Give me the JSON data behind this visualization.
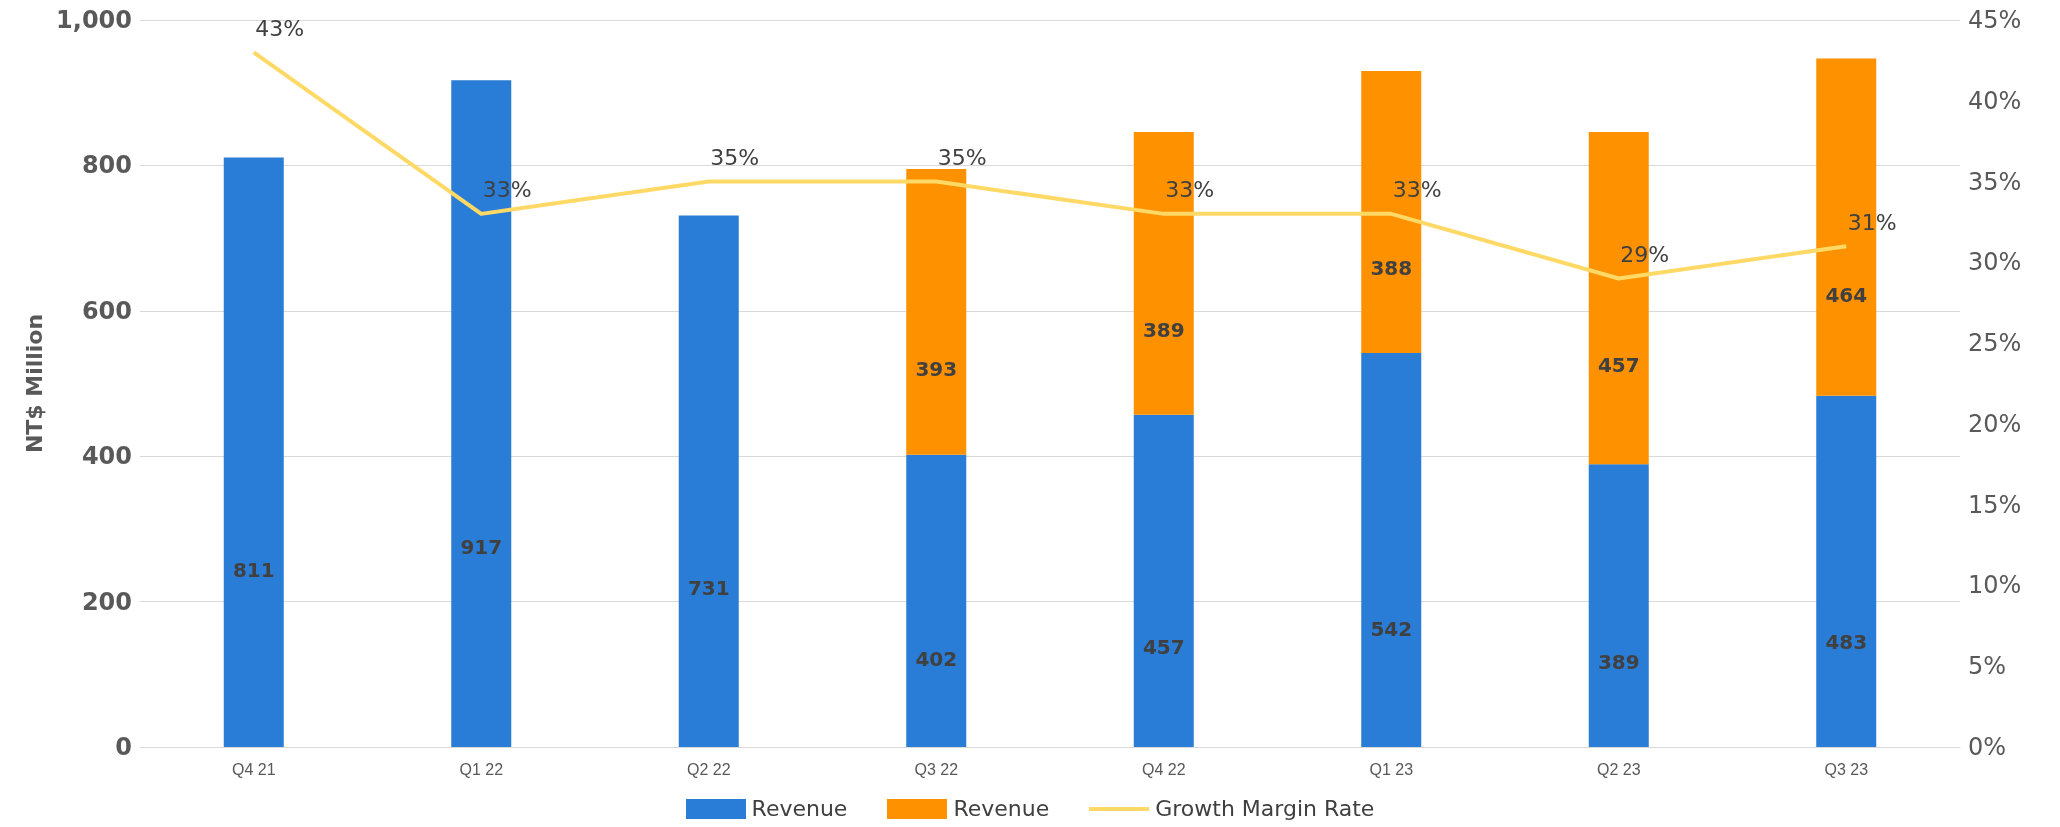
{
  "chart_data": {
    "type": "bar",
    "stacked": true,
    "ylabel": "NT$ Million",
    "categories": [
      "Q4 21",
      "Q1 22",
      "Q2 22",
      "Q3 22",
      "Q4 22",
      "Q1 23",
      "Q2 23",
      "Q3 23"
    ],
    "series": [
      {
        "name": "Revenue",
        "color": "#2a7dd6",
        "values": [
          811,
          917,
          731,
          402,
          457,
          542,
          389,
          483
        ]
      },
      {
        "name": "Revenue",
        "color": "#fd9100",
        "values": [
          null,
          null,
          null,
          393,
          389,
          388,
          457,
          464
        ]
      },
      {
        "name": "Growth Margin Rate",
        "type": "line",
        "axis": "y2",
        "color": "#ffd966",
        "values": [
          43,
          33,
          35,
          35,
          33,
          33,
          29,
          31
        ],
        "value_labels": [
          "43%",
          "33%",
          "35%",
          "35%",
          "33%",
          "33%",
          "29%",
          "31%"
        ]
      }
    ],
    "data_labels": true,
    "marker": "none",
    "ylim": [
      0,
      1000
    ],
    "yticks": [
      0,
      {
        "value": 200,
        "label": "200"
      },
      400,
      600,
      800,
      {
        "value": 1000,
        "label": "1,000"
      }
    ],
    "y2lim": [
      0,
      45
    ],
    "y2ticks": [
      {
        "value": 0,
        "label": "0%"
      },
      {
        "value": 5,
        "label": "5%"
      },
      {
        "value": 10,
        "label": "10%"
      },
      {
        "value": 15,
        "label": "15%"
      },
      {
        "value": 20,
        "label": "20%"
      },
      {
        "value": 25,
        "label": "25%"
      },
      {
        "value": 30,
        "label": "30%"
      },
      {
        "value": 35,
        "label": "35%"
      },
      {
        "value": 40,
        "label": "40%"
      },
      {
        "value": 45,
        "label": "45%"
      }
    ],
    "grid": "y",
    "legend": "bottom"
  }
}
